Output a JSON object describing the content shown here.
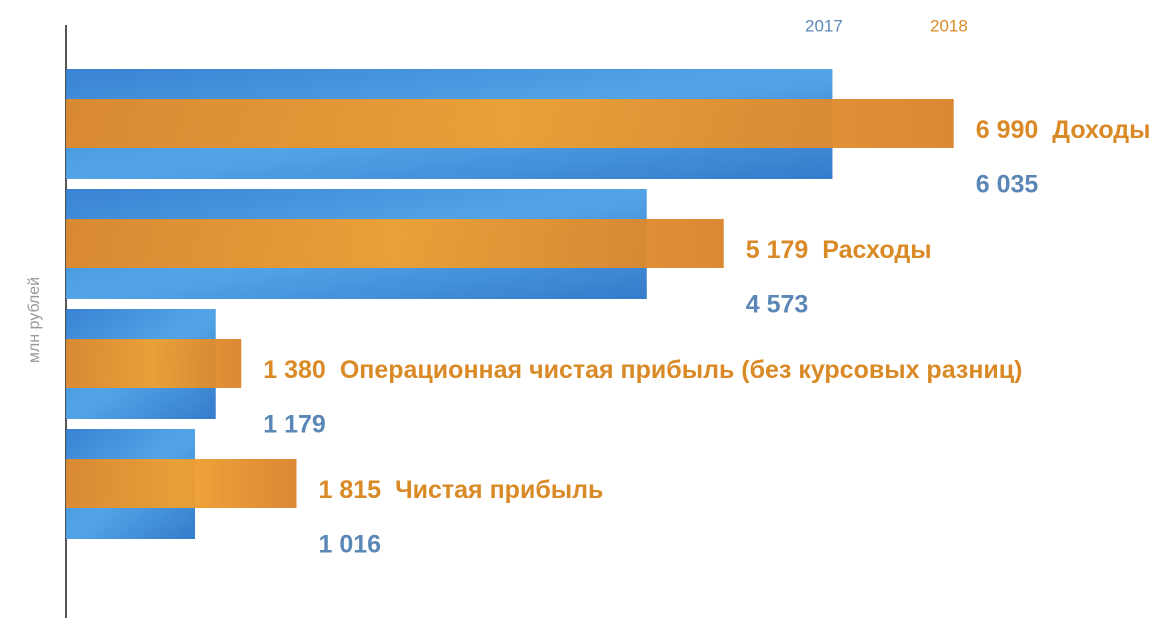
{
  "chart_data": {
    "type": "hbar",
    "y_label": "млн рублей",
    "categories": [
      "Доходы",
      "Расходы",
      "Операционная чистая прибыль (без курсовых разниц)",
      "Чистая прибыль"
    ],
    "series": [
      {
        "name": "2017",
        "color": "#3a8ad6",
        "label_color": "#5b87b6",
        "values": [
          6035,
          4573,
          1179,
          1016
        ],
        "value_labels": [
          "6 035",
          "4 573",
          "1 179",
          "1 016"
        ]
      },
      {
        "name": "2018",
        "color": "#e8962a",
        "label_color": "#d98a26",
        "values": [
          6990,
          5179,
          1380,
          1815
        ],
        "value_labels": [
          "6 990",
          "5 179",
          "1 380",
          "1 815"
        ]
      }
    ]
  }
}
